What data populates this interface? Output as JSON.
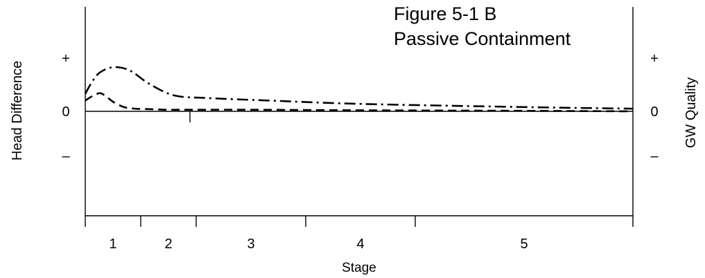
{
  "chart_data": {
    "type": "line",
    "title_lines": [
      "Figure 5-1 B",
      "Passive Containment"
    ],
    "xlabel": "Stage",
    "ylabel_left": "Head Difference",
    "ylabel_right": "GW Quality",
    "stages": [
      "1",
      "2",
      "3",
      "4",
      "5"
    ],
    "stage_boundaries": [
      0,
      1,
      2,
      3,
      4,
      5
    ],
    "y_ticks_left": [
      "+",
      "0",
      "–"
    ],
    "y_ticks_right": [
      "+",
      "0",
      "–"
    ],
    "xlim": [
      0,
      5
    ],
    "ylim": [
      -2,
      2
    ],
    "grid": false,
    "series": [
      {
        "style": "dash-dot",
        "x": [
          0,
          0.12,
          0.25,
          0.45,
          0.65,
          0.85,
          1.15,
          1.6,
          2.1,
          2.7,
          3.5,
          4.5,
          5.0
        ],
        "y": [
          0.33,
          0.55,
          0.72,
          0.82,
          0.82,
          0.74,
          0.52,
          0.3,
          0.25,
          0.2,
          0.14,
          0.08,
          0.05
        ]
      },
      {
        "style": "dashed",
        "x": [
          0,
          0.1,
          0.25,
          0.35,
          0.5,
          0.7,
          0.9,
          1.2,
          1.5,
          1.9,
          2.5,
          3.5,
          4.5,
          5.0
        ],
        "y": [
          0.2,
          0.27,
          0.34,
          0.3,
          0.18,
          0.08,
          0.05,
          0.04,
          0.03,
          0.03,
          0.03,
          0.02,
          0.01,
          0.0
        ]
      }
    ]
  }
}
